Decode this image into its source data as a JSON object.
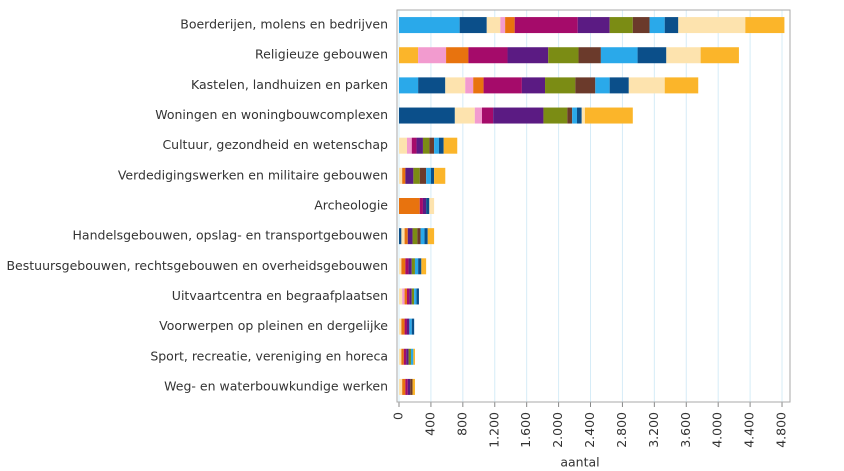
{
  "chart_data": {
    "type": "stacked-barh",
    "xlabel": "aantal",
    "categories": [
      "Boerderijen, molens en bedrijven",
      "Religieuze gebouwen",
      "Kastelen, landhuizen en parken",
      "Woningen en woningbouwcomplexen",
      "Cultuur, gezondheid en wetenschap",
      "Verdedigingswerken en militaire gebouwen",
      "Archeologie",
      "Handelsgebouwen, opslag- en transportgebouwen",
      "Bestuursgebouwen, rechtsgebouwen en overheidsgebouwen",
      "Uitvaartcentra en begraafplaatsen",
      "Voorwerpen op pleinen en dergelijke",
      "Sport, recreatie, vereniging en horeca",
      "Weg- en waterbouwkundige werken"
    ],
    "series": [
      {
        "color": "#fbb52a",
        "values": [
          0,
          240,
          0,
          0,
          0,
          0,
          0,
          0,
          0,
          0,
          0,
          0,
          0
        ]
      },
      {
        "color": "#2aa9ea",
        "values": [
          760,
          0,
          240,
          0,
          0,
          0,
          0,
          0,
          0,
          0,
          0,
          0,
          0
        ]
      },
      {
        "color": "#0b4f8a",
        "values": [
          340,
          0,
          340,
          700,
          0,
          0,
          0,
          30,
          0,
          0,
          0,
          0,
          0
        ]
      },
      {
        "color": "#fde3ae",
        "values": [
          170,
          0,
          250,
          250,
          100,
          40,
          0,
          40,
          30,
          40,
          30,
          30,
          40
        ]
      },
      {
        "color": "#f29bcf",
        "values": [
          60,
          350,
          100,
          90,
          60,
          0,
          0,
          0,
          0,
          30,
          0,
          0,
          0
        ]
      },
      {
        "color": "#e8730e",
        "values": [
          120,
          280,
          130,
          0,
          0,
          40,
          260,
          40,
          50,
          30,
          40,
          30,
          40
        ]
      },
      {
        "color": "#a50b6a",
        "values": [
          790,
          490,
          480,
          140,
          60,
          0,
          40,
          0,
          40,
          30,
          30,
          30,
          30
        ]
      },
      {
        "color": "#5b1b83",
        "values": [
          400,
          510,
          290,
          630,
          80,
          100,
          40,
          60,
          40,
          30,
          30,
          30,
          30
        ]
      },
      {
        "color": "#7b8c14",
        "values": [
          290,
          380,
          380,
          300,
          80,
          80,
          0,
          60,
          40,
          30,
          0,
          30,
          0
        ]
      },
      {
        "color": "#6b3a2b",
        "values": [
          210,
          280,
          250,
          60,
          60,
          80,
          0,
          40,
          0,
          0,
          0,
          0,
          30
        ]
      },
      {
        "color": "#2aa9ea",
        "values": [
          190,
          460,
          180,
          60,
          60,
          60,
          0,
          50,
          40,
          30,
          30,
          30,
          0
        ]
      },
      {
        "color": "#0b4f8a",
        "values": [
          170,
          360,
          240,
          60,
          60,
          40,
          40,
          40,
          40,
          30,
          30,
          0,
          0
        ]
      },
      {
        "color": "#fde3ae",
        "values": [
          840,
          430,
          450,
          40,
          0,
          0,
          60,
          0,
          0,
          0,
          0,
          0,
          0
        ]
      },
      {
        "color": "#fbb52a",
        "values": [
          490,
          480,
          420,
          600,
          170,
          140,
          0,
          80,
          60,
          0,
          0,
          20,
          30
        ]
      }
    ],
    "xlim": [
      0,
      4900
    ],
    "xticks": [
      0,
      400,
      800,
      {
        "value": 1200,
        "label": "1.200"
      },
      {
        "value": 1600,
        "label": "1.600"
      },
      {
        "value": 2000,
        "label": "2.000"
      },
      {
        "value": 2400,
        "label": "2.400"
      },
      {
        "value": 2800,
        "label": "2.800"
      },
      {
        "value": 3200,
        "label": "3.200"
      },
      {
        "value": 3600,
        "label": "3.600"
      },
      {
        "value": 4000,
        "label": "4.000"
      },
      {
        "value": 4400,
        "label": "4.400"
      },
      {
        "value": 4800,
        "label": "4.800"
      }
    ],
    "grid": true
  }
}
